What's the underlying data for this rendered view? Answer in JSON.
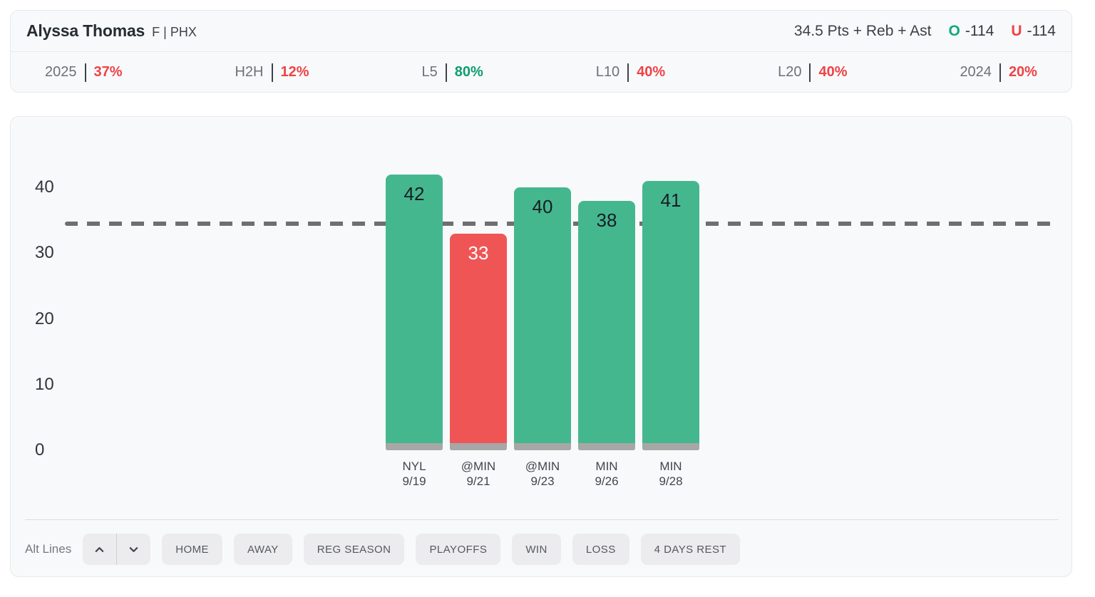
{
  "header": {
    "player_name": "Alyssa Thomas",
    "position_team": "F | PHX",
    "prop_line_label": "34.5 Pts + Reb + Ast",
    "over_label": "O",
    "over_odds": "-114",
    "under_label": "U",
    "under_odds": "-114",
    "stats": [
      {
        "label": "2025",
        "value": "37%",
        "status": "under"
      },
      {
        "label": "H2H",
        "value": "12%",
        "status": "under"
      },
      {
        "label": "L5",
        "value": "80%",
        "status": "over"
      },
      {
        "label": "L10",
        "value": "40%",
        "status": "under"
      },
      {
        "label": "L20",
        "value": "40%",
        "status": "under"
      },
      {
        "label": "2024",
        "value": "20%",
        "status": "under"
      }
    ]
  },
  "chart_data": {
    "type": "bar",
    "title": "",
    "categories": [
      "NYL 9/19",
      "@MIN 9/21",
      "@MIN 9/23",
      "MIN 9/26",
      "MIN 9/28"
    ],
    "category_lines": [
      [
        "NYL",
        "9/19"
      ],
      [
        "@MIN",
        "9/21"
      ],
      [
        "@MIN",
        "9/23"
      ],
      [
        "MIN",
        "9/26"
      ],
      [
        "MIN",
        "9/28"
      ]
    ],
    "values": [
      42,
      33,
      40,
      38,
      41
    ],
    "statuses": [
      "over",
      "under",
      "over",
      "over",
      "over"
    ],
    "prop_line_value": 34.5,
    "yticks": [
      0,
      10,
      20,
      30,
      40
    ],
    "ylim": [
      0,
      50
    ],
    "grid": false,
    "legend": false,
    "xlabel": "",
    "ylabel": ""
  },
  "filters": {
    "alt_lines_label": "Alt Lines",
    "stepper_icons": [
      "chevron-up-icon",
      "chevron-down-icon"
    ],
    "buttons": [
      "HOME",
      "AWAY",
      "REG SEASON",
      "PLAYOFFS",
      "WIN",
      "LOSS",
      "4 DAYS REST"
    ]
  },
  "colors": {
    "over_green": "#45b78f",
    "under_red": "#f05556",
    "over_text_green": "#0f9d6e",
    "under_text_red": "#ee4347",
    "odds_over_green": "#13a97b",
    "odds_under_red": "#ee4347",
    "bar_base_gray": "#a7a7a7",
    "prop_dash_line": "#6f6f6f",
    "card_bg": "#f8f9fa",
    "card_border": "#e8e9eb",
    "filter_button_bg": "#ececee"
  }
}
